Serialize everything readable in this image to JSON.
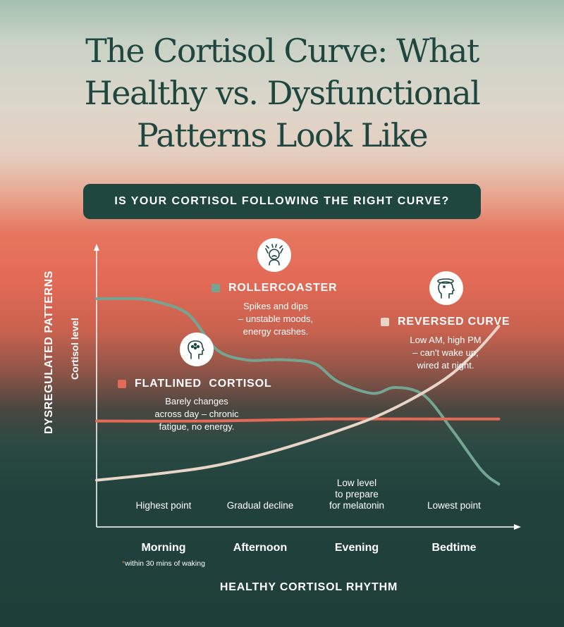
{
  "title_lines": [
    "The Cortisol Curve: What",
    "Healthy vs. Dysfunctional",
    "Patterns Look Like"
  ],
  "banner": "IS YOUR CORTISOL FOLLOWING THE RIGHT CURVE?",
  "vertical_label": "DYSREGULATED PATTERNS",
  "annotations": {
    "rollercoaster": {
      "title": "ROLLERCOASTER",
      "desc": [
        "Spikes and dips",
        "– unstable moods,",
        "energy crashes."
      ],
      "color": "#74a592",
      "icon": "stressed-head-icon"
    },
    "flatlined": {
      "title": "FLATLINED  CORTISOL",
      "desc": [
        "Barely changes",
        "across day – chronic",
        "fatigue, no energy."
      ],
      "color": "#e26a56",
      "icon": "foggy-brain-icon"
    },
    "reversed": {
      "title": "REVERSED CURVE",
      "desc": [
        "Low AM, high PM",
        "– can't wake up,",
        "wired at night."
      ],
      "color": "#e8d5c8",
      "icon": "dizzy-head-icon"
    }
  },
  "footnote": {
    "asterisk": "*",
    "text": "within 30 mins of waking"
  },
  "chart_data": {
    "type": "line",
    "title": "",
    "ylabel": "Cortisol level",
    "xlabel": "HEALTHY CORTISOL RHYTHM",
    "categories": [
      "Morning",
      "Afternoon",
      "Evening",
      "Bedtime"
    ],
    "category_notes": [
      "Highest point",
      "Gradual decline",
      "Low level\nto prepare\nfor melatonin",
      "Lowest point"
    ],
    "ylim": [
      0,
      100
    ],
    "series": [
      {
        "name": "ROLLERCOASTER",
        "color": "#74a592",
        "x": [
          0,
          0.35,
          0.55,
          0.8,
          1.05,
          1.3,
          1.5,
          1.65,
          1.9,
          2.1,
          2.4,
          2.6,
          2.85,
          3.1,
          3.35,
          3.5
        ],
        "y": [
          90,
          90,
          88,
          82,
          64,
          59,
          59,
          59,
          57,
          48,
          42,
          45,
          41,
          23,
          3,
          -4
        ]
      },
      {
        "name": "FLATLINED  CORTISOL",
        "color": "#e26a56",
        "x": [
          0,
          1,
          2,
          3,
          3.5
        ],
        "y": [
          28,
          28,
          29,
          29,
          29
        ]
      },
      {
        "name": "REVERSED CURVE",
        "color": "#e8d5c8",
        "x": [
          0,
          0.5,
          1,
          1.5,
          2,
          2.5,
          3,
          3.3,
          3.5
        ],
        "y": [
          -2,
          1,
          5,
          12,
          21,
          32,
          48,
          63,
          76
        ]
      }
    ]
  }
}
